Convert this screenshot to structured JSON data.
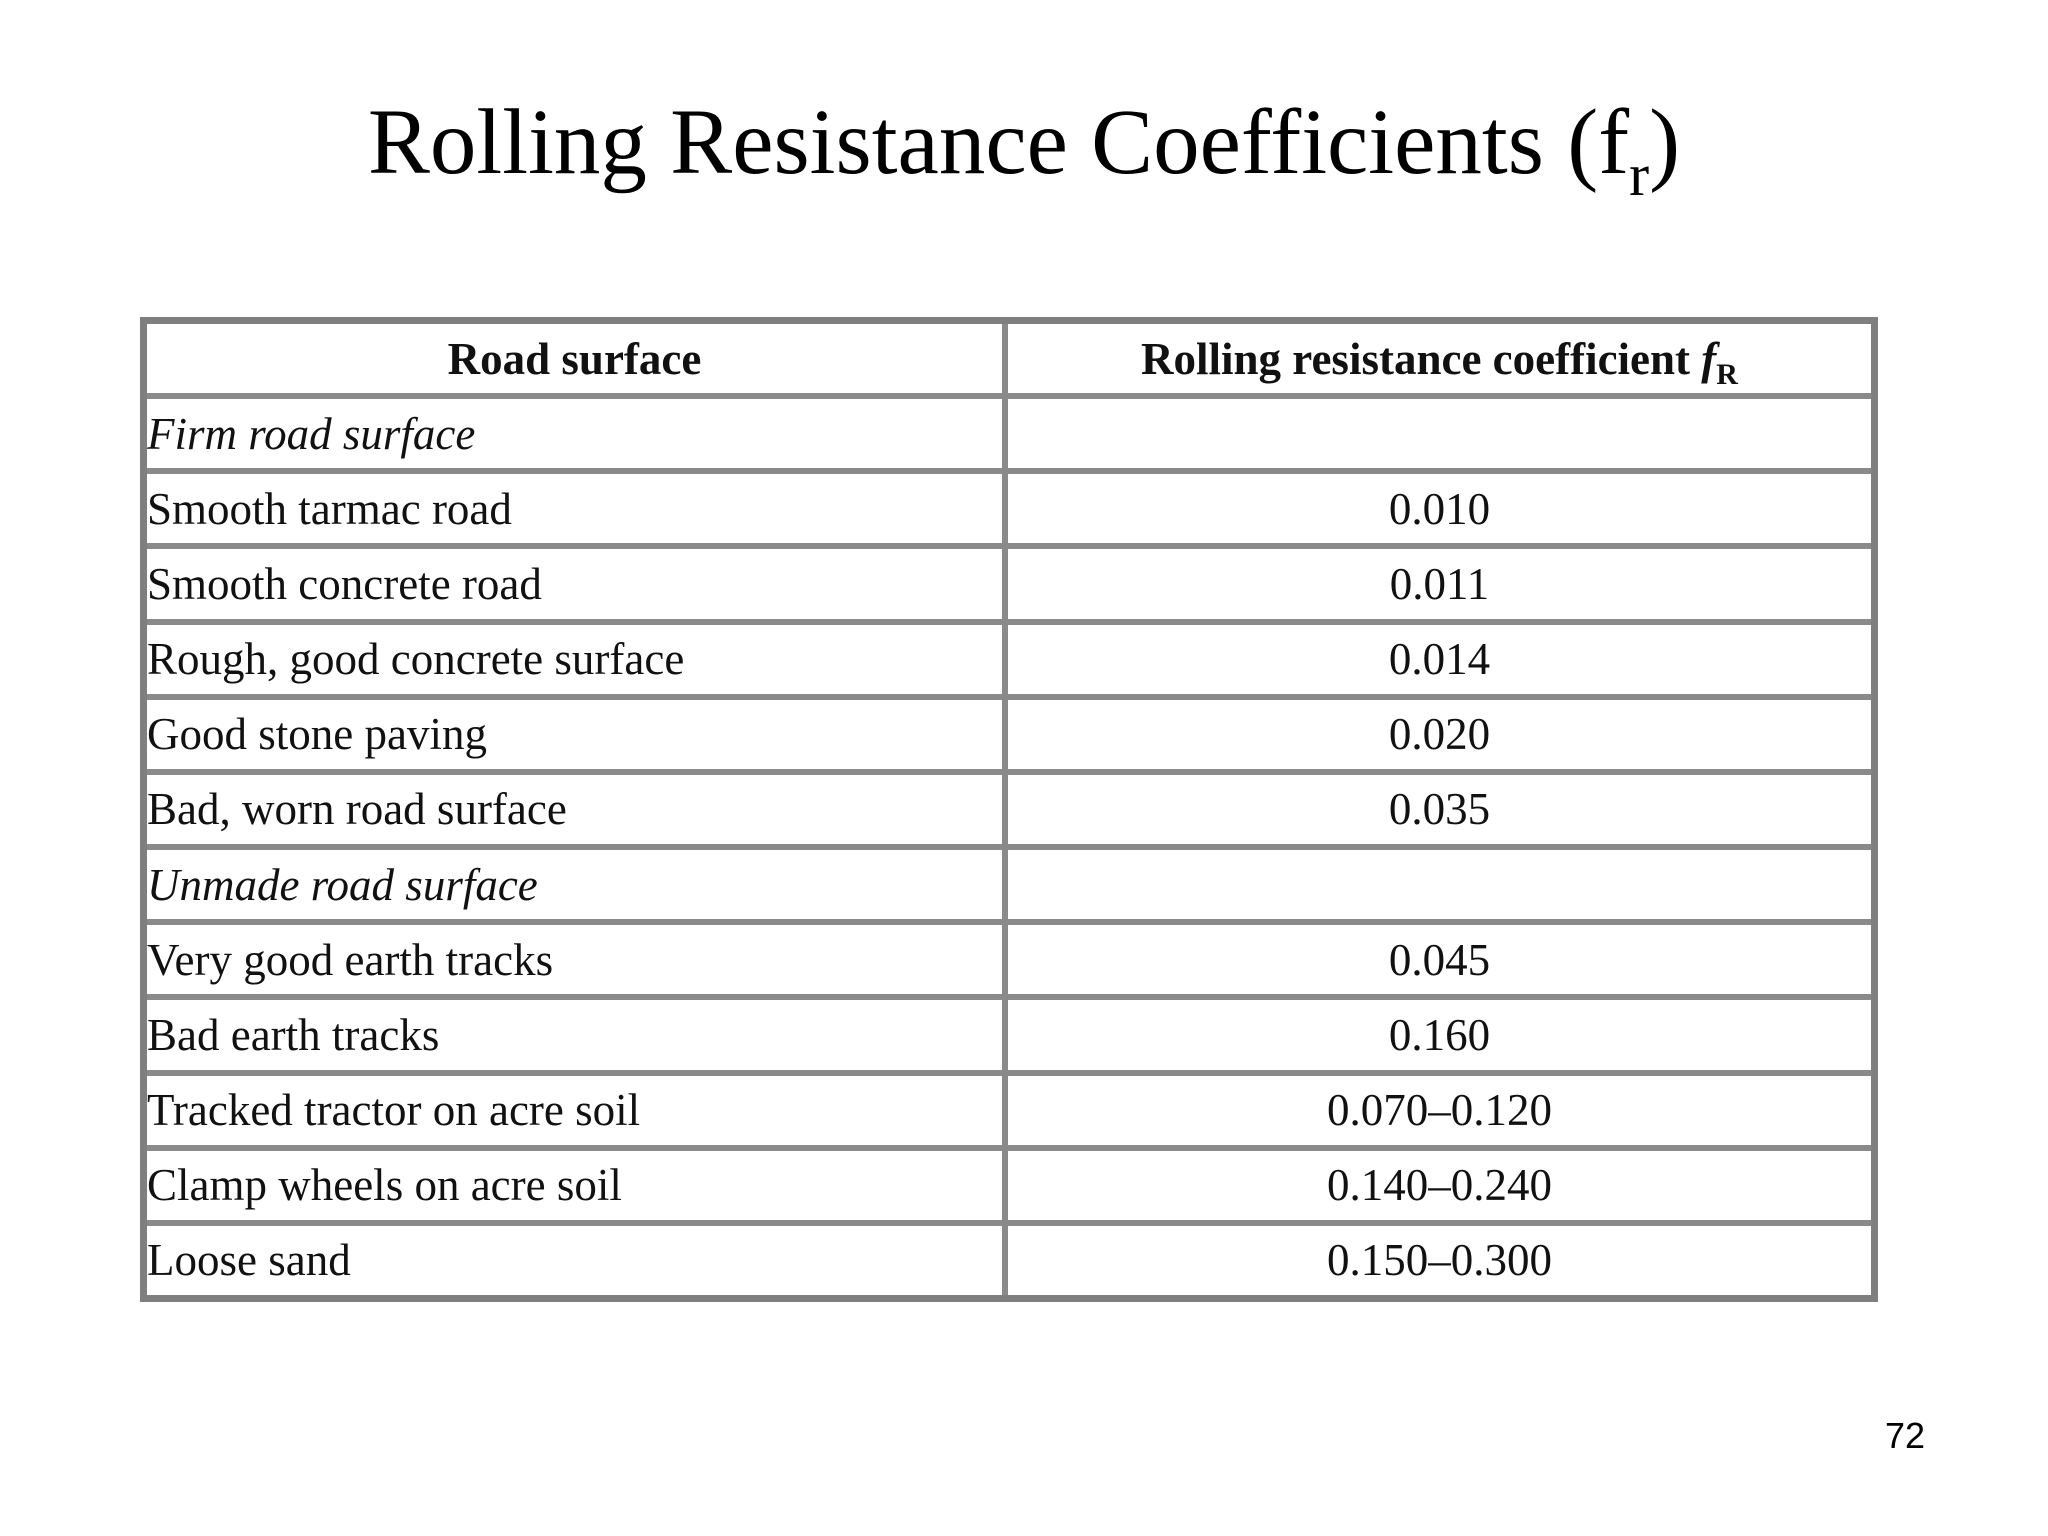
{
  "slide": {
    "title": "Rolling Resistance Coefficients (f",
    "title_subscript": "r",
    "title_close": ")",
    "page_number": "72"
  },
  "table": {
    "header": {
      "col1": "Road surface",
      "col2": "Rolling resistance coefficient ",
      "col2_symbol": "f",
      "col2_subscript": "R"
    },
    "groups": [
      {
        "label": "Firm road surface",
        "rows": [
          {
            "surface": "Smooth tarmac road",
            "value": "0.010"
          },
          {
            "surface": "Smooth concrete road",
            "value": "0.011"
          },
          {
            "surface": "Rough, good concrete surface",
            "value": "0.014"
          },
          {
            "surface": "Good stone paving",
            "value": "0.020"
          },
          {
            "surface": "Bad, worn road surface",
            "value": "0.035"
          }
        ]
      },
      {
        "label": "Unmade road surface",
        "rows": [
          {
            "surface": "Very good earth tracks",
            "value": "0.045"
          },
          {
            "surface": "Bad earth tracks",
            "value": "0.160"
          },
          {
            "surface": "Tracked tractor on acre soil",
            "value": "0.070–0.120"
          },
          {
            "surface": "Clamp wheels on acre soil",
            "value": "0.140–0.240"
          },
          {
            "surface": "Loose sand",
            "value": "0.150–0.300"
          }
        ]
      }
    ]
  }
}
